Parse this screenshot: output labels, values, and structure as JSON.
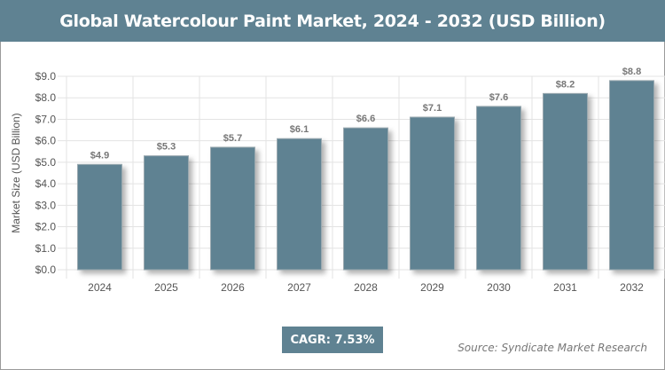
{
  "title": "Global Watercolour Paint Market, 2024 - 2032 (USD Billion)",
  "cagr": "CAGR: 7.53%",
  "source": "Source: Syndicate Market Research",
  "colors": {
    "bar": "#5f8292",
    "header": "#5f8292"
  },
  "chart_data": {
    "type": "bar",
    "title": "Global Watercolour Paint Market, 2024 - 2032 (USD Billion)",
    "xlabel": "",
    "ylabel": "Market Size (USD Billion)",
    "categories": [
      "2024",
      "2025",
      "2026",
      "2027",
      "2028",
      "2029",
      "2030",
      "2031",
      "2032"
    ],
    "values": [
      4.9,
      5.3,
      5.7,
      6.1,
      6.6,
      7.1,
      7.6,
      8.2,
      8.8
    ],
    "data_labels": [
      "$4.9",
      "$5.3",
      "$5.7",
      "$6.1",
      "$6.6",
      "$7.1",
      "$7.6",
      "$8.2",
      "$8.8"
    ],
    "ylim": [
      0,
      9
    ],
    "yticks": [
      "$0.0",
      "$1.0",
      "$2.0",
      "$3.0",
      "$4.0",
      "$5.0",
      "$6.0",
      "$7.0",
      "$8.0",
      "$9.0"
    ],
    "grid": true,
    "legend": "none"
  }
}
